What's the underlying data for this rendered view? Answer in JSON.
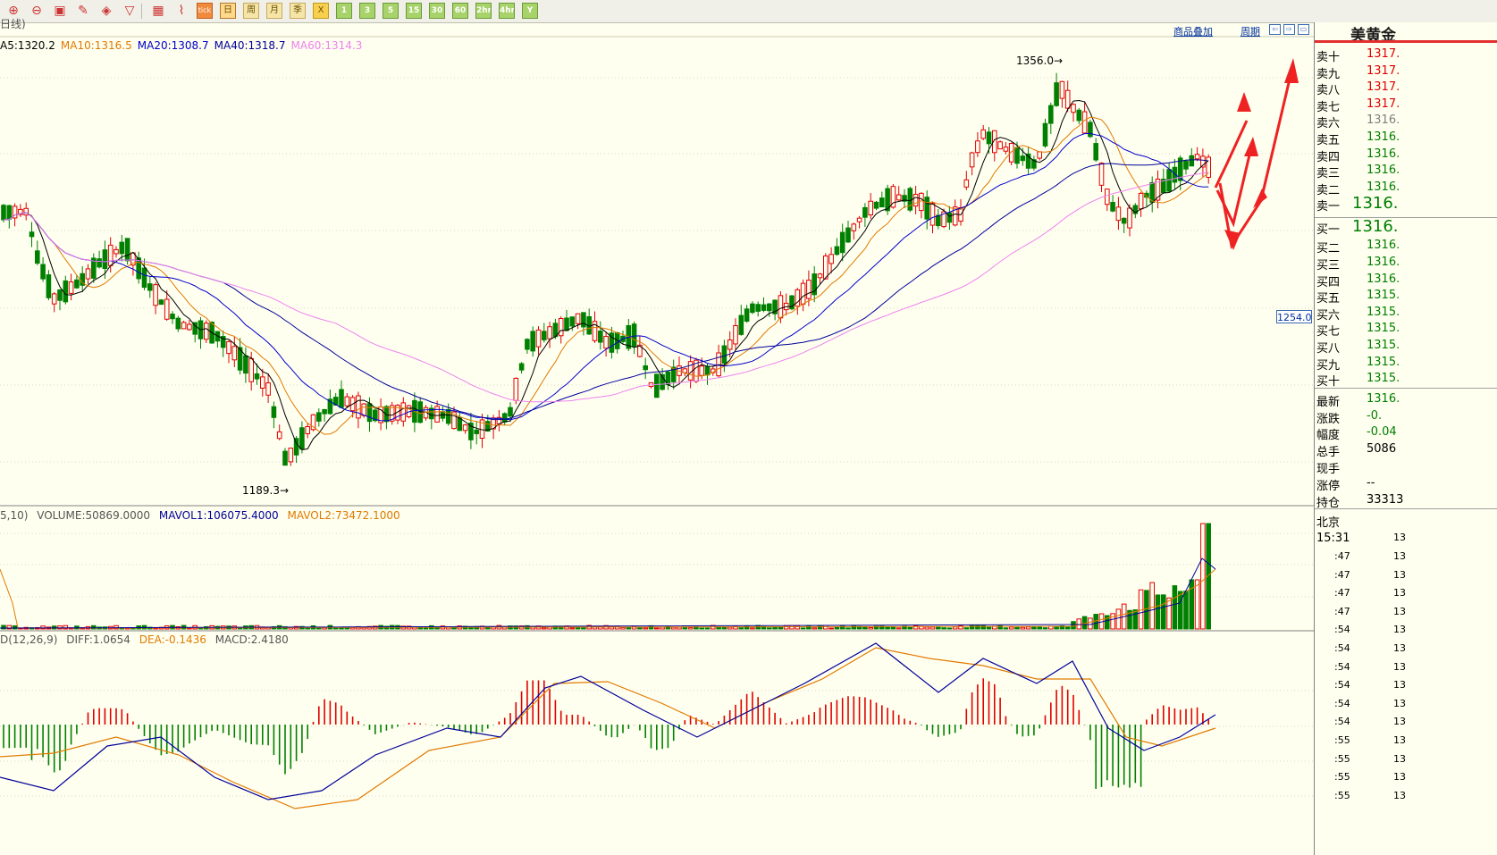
{
  "toolbar": {
    "icons": [
      "zoom-in-icon",
      "zoom-out-icon",
      "window-icon",
      "draw-pen-icon",
      "eraser-icon",
      "filter-icon",
      "table-icon",
      "line-chart-icon"
    ],
    "tick": "tick",
    "periods": [
      "日",
      "周",
      "月",
      "季",
      "X"
    ],
    "selected_period": "日",
    "minutes": [
      "1",
      "3",
      "5",
      "15",
      "30",
      "60",
      "2hr",
      "4hr",
      "Y"
    ]
  },
  "chart": {
    "period_label": "日线)",
    "ma": [
      {
        "label": "A5:1320.2",
        "color": "#000000"
      },
      {
        "label": "MA10:1316.5",
        "color": "#e07a00"
      },
      {
        "label": "MA20:1308.7",
        "color": "#0000cc"
      },
      {
        "label": "MA40:1318.7",
        "color": "#000099"
      },
      {
        "label": "MA60:1314.3",
        "color": "#ee82ee"
      }
    ],
    "high_label": "1356.0",
    "low_label": "1189.3",
    "price_tag": "1254.0",
    "top_links": {
      "overlay": "商品叠加",
      "period": "周期"
    },
    "volume_legend": {
      "prefix": "5,10)",
      "volume": "VOLUME:50869.0000",
      "mavol1": "MAVOL1:106075.4000",
      "mavol2": "MAVOL2:73472.1000"
    },
    "macd_legend": {
      "prefix": "D(12,26,9)",
      "diff": "DIFF:1.0654",
      "dea": "DEA:-0.1436",
      "macd": "MACD:2.4180"
    },
    "colors": {
      "up": "#e00000",
      "down": "#008000",
      "bg": "#fffff0",
      "ma_black": "#000000",
      "ma_orange": "#e07a00",
      "ma_blue": "#0000cc",
      "ma_navy": "#000099",
      "ma_violet": "#ee82ee"
    }
  },
  "side": {
    "title": "美黄金",
    "asks": [
      {
        "label": "卖十",
        "price": "1317.",
        "color": "#e00000"
      },
      {
        "label": "卖九",
        "price": "1317.",
        "color": "#e00000"
      },
      {
        "label": "卖八",
        "price": "1317.",
        "color": "#e00000"
      },
      {
        "label": "卖七",
        "price": "1317.",
        "color": "#e00000"
      },
      {
        "label": "卖六",
        "price": "1316.",
        "color": "#808080"
      },
      {
        "label": "卖五",
        "price": "1316.",
        "color": "#008000"
      },
      {
        "label": "卖四",
        "price": "1316.",
        "color": "#008000"
      },
      {
        "label": "卖三",
        "price": "1316.",
        "color": "#008000"
      },
      {
        "label": "卖二",
        "price": "1316.",
        "color": "#008000"
      },
      {
        "label": "卖一",
        "price": "1316.",
        "color": "#008000"
      }
    ],
    "bids": [
      {
        "label": "买一",
        "price": "1316.",
        "color": "#008000"
      },
      {
        "label": "买二",
        "price": "1316.",
        "color": "#008000"
      },
      {
        "label": "买三",
        "price": "1316.",
        "color": "#008000"
      },
      {
        "label": "买四",
        "price": "1316.",
        "color": "#008000"
      },
      {
        "label": "买五",
        "price": "1315.",
        "color": "#008000"
      },
      {
        "label": "买六",
        "price": "1315.",
        "color": "#008000"
      },
      {
        "label": "买七",
        "price": "1315.",
        "color": "#008000"
      },
      {
        "label": "买八",
        "price": "1315.",
        "color": "#008000"
      },
      {
        "label": "买九",
        "price": "1315.",
        "color": "#008000"
      },
      {
        "label": "买十",
        "price": "1315.",
        "color": "#008000"
      }
    ],
    "stats": [
      {
        "label": "最新",
        "value": "1316.",
        "color": "#008000"
      },
      {
        "label": "涨跌",
        "value": "-0.",
        "color": "#008000"
      },
      {
        "label": "幅度",
        "value": "-0.04",
        "color": "#008000"
      },
      {
        "label": "总手",
        "value": "5086",
        "color": "#000000"
      },
      {
        "label": "现手",
        "value": "",
        "color": "#000000"
      },
      {
        "label": "涨停",
        "value": "--",
        "color": "#000000"
      },
      {
        "label": "持仓",
        "value": "33313",
        "color": "#000000"
      }
    ],
    "region": "北京",
    "ticks": [
      {
        "time": "15:31",
        "price": "13"
      },
      {
        "time": ":47",
        "price": "13"
      },
      {
        "time": ":47",
        "price": "13"
      },
      {
        "time": ":47",
        "price": "13"
      },
      {
        "time": ":47",
        "price": "13"
      },
      {
        "time": ":54",
        "price": "13"
      },
      {
        "time": ":54",
        "price": "13"
      },
      {
        "time": ":54",
        "price": "13"
      },
      {
        "time": ":54",
        "price": "13"
      },
      {
        "time": ":54",
        "price": "13"
      },
      {
        "time": ":54",
        "price": "13"
      },
      {
        "time": ":55",
        "price": "13"
      },
      {
        "time": ":55",
        "price": "13"
      },
      {
        "time": ":55",
        "price": "13"
      },
      {
        "time": ":55",
        "price": "13"
      }
    ]
  }
}
